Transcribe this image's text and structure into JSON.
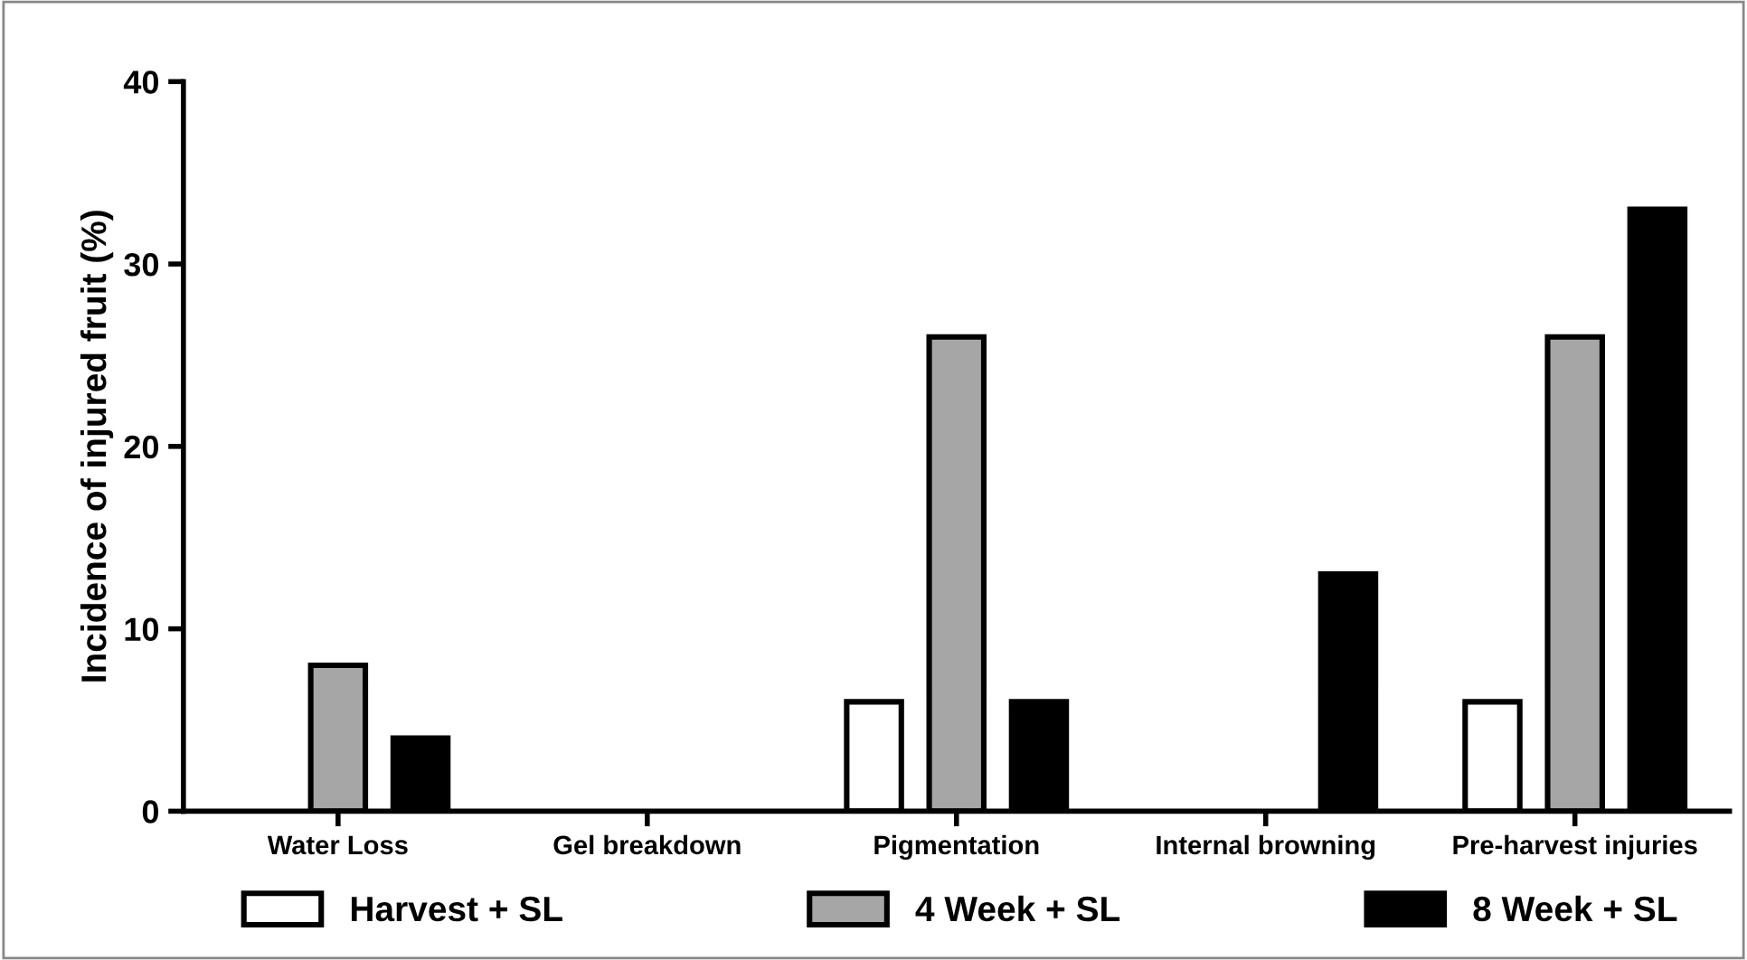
{
  "chart_data": {
    "type": "bar",
    "ylabel": "Incidence of injured fruit (%)",
    "categories": [
      "Water Loss",
      "Gel breakdown",
      "Pigmentation",
      "Internal browning",
      "Pre-harvest injuries"
    ],
    "series": [
      {
        "name": "Harvest + SL",
        "color": "#ffffff",
        "values": [
          0,
          0,
          6,
          0,
          6
        ]
      },
      {
        "name": "4 Week + SL",
        "color": "#a6a6a6",
        "values": [
          8,
          0,
          26,
          0,
          26
        ]
      },
      {
        "name": "8 Week + SL",
        "color": "#000000",
        "values": [
          4,
          0,
          6,
          13,
          33
        ]
      }
    ],
    "ylim": [
      0,
      40
    ],
    "yticks": [
      0,
      10,
      20,
      30,
      40
    ],
    "grid": false,
    "legend": "bottom"
  }
}
